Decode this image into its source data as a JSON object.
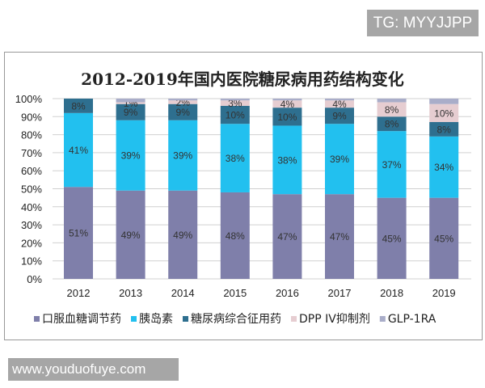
{
  "watermark_top": "TG: MYYJJPP",
  "watermark_bottom": "www.youduofuye.com",
  "chart_data": {
    "type": "bar",
    "stacked": true,
    "title": "2012-2019年国内医院糖尿病用药结构变化",
    "categories": [
      "2012",
      "2013",
      "2014",
      "2015",
      "2016",
      "2017",
      "2018",
      "2019"
    ],
    "ylim": [
      0,
      100
    ],
    "yticks": [
      "0%",
      "10%",
      "20%",
      "30%",
      "40%",
      "50%",
      "60%",
      "70%",
      "80%",
      "90%",
      "100%"
    ],
    "grid": true,
    "legend_position": "bottom",
    "series": [
      {
        "name": "口服血糖调节药",
        "color": "#7f7faa",
        "values": [
          51,
          49,
          49,
          48,
          47,
          47,
          45,
          45
        ],
        "labels": [
          "51%",
          "49%",
          "49%",
          "48%",
          "47%",
          "47%",
          "45%",
          "45%"
        ]
      },
      {
        "name": "胰岛素",
        "color": "#22c0ef",
        "values": [
          41,
          39,
          39,
          38,
          38,
          39,
          37,
          34
        ],
        "labels": [
          "41%",
          "39%",
          "39%",
          "38%",
          "38%",
          "39%",
          "37%",
          "34%"
        ]
      },
      {
        "name": "糖尿病综合征用药",
        "color": "#2e6f8f",
        "values": [
          8,
          9,
          9,
          10,
          10,
          9,
          8,
          8
        ],
        "labels": [
          "8%",
          "9%",
          "9%",
          "10%",
          "10%",
          "9%",
          "8%",
          "8%"
        ]
      },
      {
        "name": "DPP IV抑制剂",
        "color": "#e6cdd1",
        "values": [
          0,
          1,
          2,
          3,
          4,
          4,
          8,
          10
        ],
        "labels": [
          "",
          "1%",
          "2%",
          "3%",
          "4%",
          "4%",
          "8%",
          "10%"
        ]
      },
      {
        "name": "GLP-1RA",
        "color": "#a9adc9",
        "values": [
          0,
          2,
          1,
          1,
          1,
          1,
          2,
          3
        ],
        "labels": [
          "",
          "",
          "",
          "",
          "",
          "",
          "",
          ""
        ]
      }
    ]
  }
}
